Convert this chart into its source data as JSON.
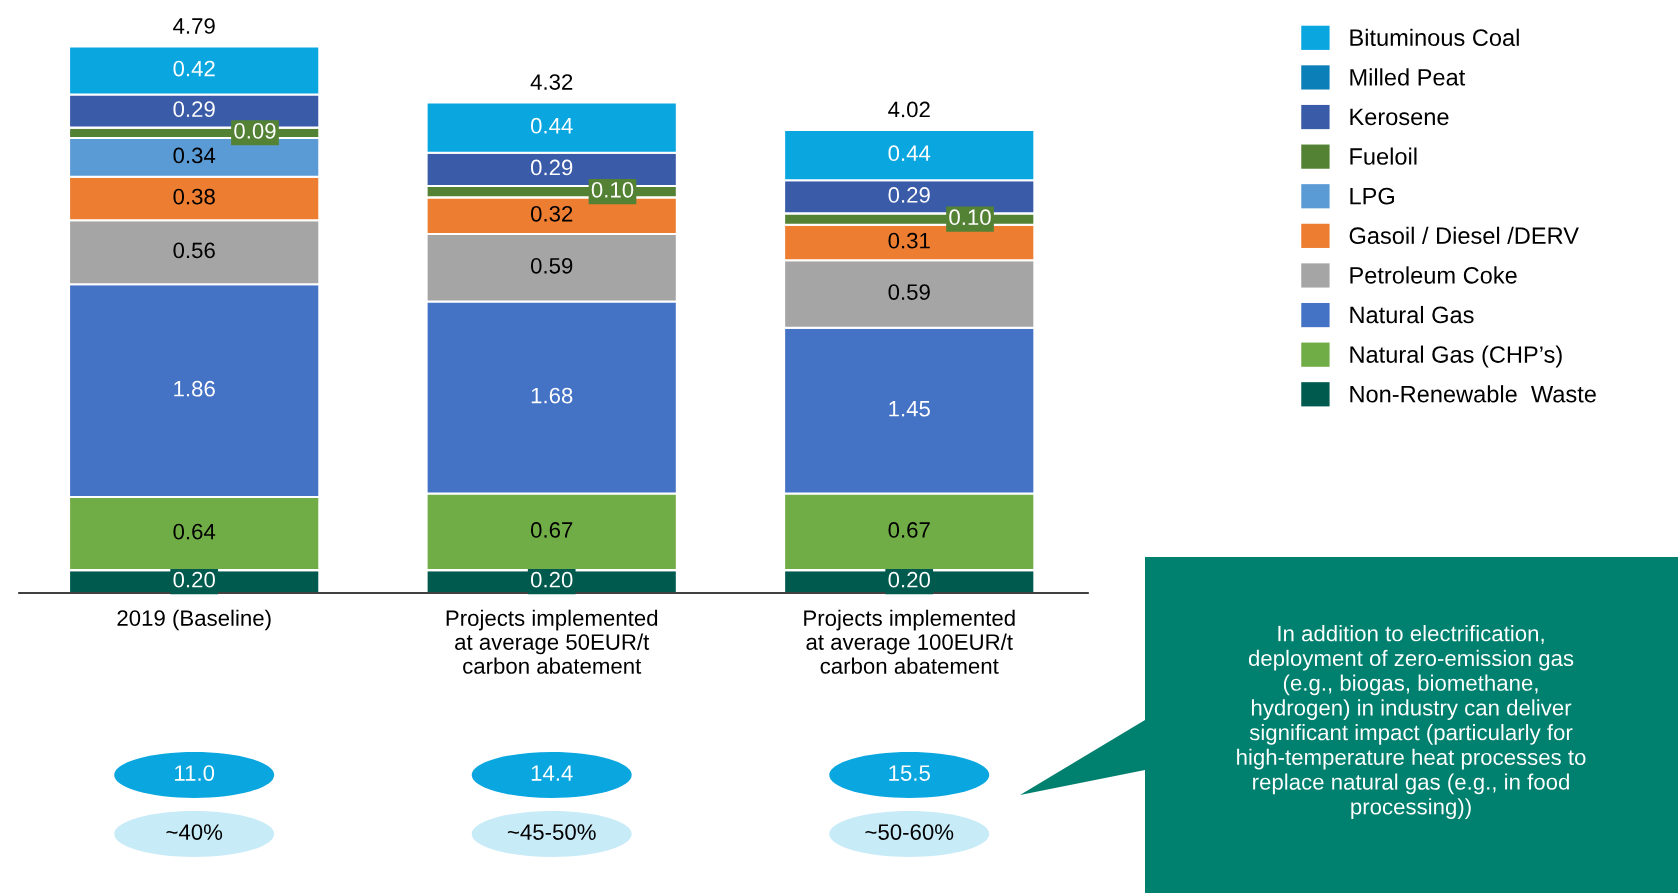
{
  "chart_data": {
    "type": "bar",
    "stacked": true,
    "categories": [
      "2019 (Baseline)",
      "Projects implemented\nat average 50EUR/t\ncarbon abatement",
      "Projects implemented\nat average 100EUR/t\ncarbon abatement"
    ],
    "series": [
      {
        "name": "Non-Renewable  Waste",
        "color": "#005a4e",
        "values": [
          0.2,
          0.2,
          0.2
        ],
        "value_labels": [
          "0.20",
          "0.20",
          "0.20"
        ]
      },
      {
        "name": "Natural Gas (CHP’s)",
        "color": "#70ad47",
        "values": [
          0.64,
          0.67,
          0.67
        ],
        "value_labels": [
          "0.64",
          "0.67",
          "0.67"
        ]
      },
      {
        "name": "Natural Gas",
        "color": "#4472c4",
        "values": [
          1.86,
          1.68,
          1.45
        ],
        "value_labels": [
          "1.86",
          "1.68",
          "1.45"
        ]
      },
      {
        "name": "Petroleum Coke",
        "color": "#a5a5a5",
        "values": [
          0.56,
          0.59,
          0.59
        ],
        "value_labels": [
          "0.56",
          "0.59",
          "0.59"
        ]
      },
      {
        "name": "Gasoil / Diesel /DERV",
        "color": "#ed7d31",
        "values": [
          0.38,
          0.32,
          0.31
        ],
        "value_labels": [
          "0.38",
          "0.32",
          "0.31"
        ]
      },
      {
        "name": "LPG",
        "color": "#5b9bd5",
        "values": [
          0.34,
          null,
          null
        ],
        "value_labels": [
          "0.34",
          null,
          null
        ]
      },
      {
        "name": "Fueloil",
        "color": "#548235",
        "values": [
          0.09,
          0.1,
          0.1
        ],
        "value_labels": [
          "0.09",
          "0.10",
          "0.10"
        ]
      },
      {
        "name": "Kerosene",
        "color": "#3a5ba8",
        "values": [
          0.29,
          0.29,
          0.29
        ],
        "value_labels": [
          "0.29",
          "0.29",
          "0.29"
        ]
      },
      {
        "name": "Milled Peat",
        "color": "#0b7fb8",
        "values": [
          null,
          null,
          null
        ],
        "value_labels": [
          null,
          null,
          null
        ]
      },
      {
        "name": "Bituminous Coal",
        "color": "#0aa6e0",
        "values": [
          0.42,
          0.44,
          0.44
        ],
        "value_labels": [
          "0.42",
          "0.44",
          "0.44"
        ]
      }
    ],
    "totals": [
      "4.79",
      "4.32",
      "4.02"
    ],
    "legend": "right",
    "grid": false,
    "annotations": [
      "11.0",
      "14.4",
      "15.5",
      "~40%",
      "~45-50%",
      "~50-60%",
      "In addition to electrification,\ndeployment of zero-emission gas\n(e.g., biogas, biomethane,\nhydrogen) in industry can deliver\nsignificant impact (particularly for\nhigh-temperature heat processes to\nreplace natural gas (e.g., in food\nprocessing))"
    ]
  }
}
